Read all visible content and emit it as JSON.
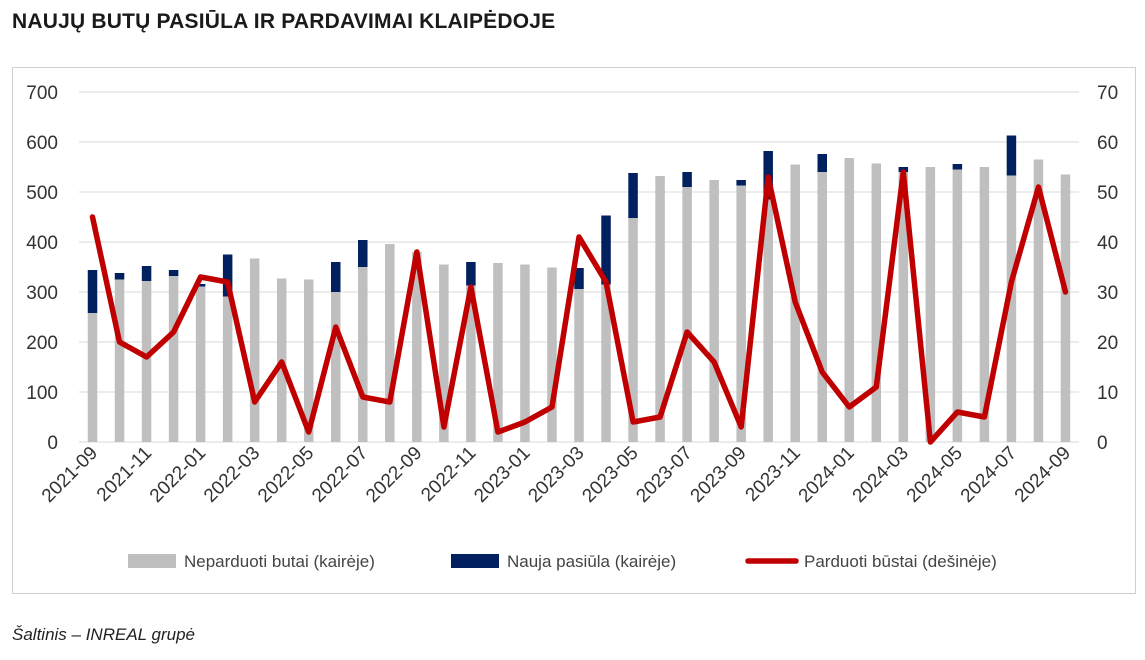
{
  "title": "NAUJŲ BUTŲ PASIŪLA IR PARDAVIMAI KLAIPĖDOJE",
  "source": "Šaltinis – INREAL grupė",
  "chart_data": {
    "type": "bar+line",
    "categories": [
      "2021-09",
      "2021-10",
      "2021-11",
      "2021-12",
      "2022-01",
      "2022-02",
      "2022-03",
      "2022-04",
      "2022-05",
      "2022-06",
      "2022-07",
      "2022-08",
      "2022-09",
      "2022-10",
      "2022-11",
      "2022-12",
      "2023-01",
      "2023-02",
      "2023-03",
      "2023-04",
      "2023-05",
      "2023-06",
      "2023-07",
      "2023-08",
      "2023-09",
      "2023-10",
      "2023-11",
      "2023-12",
      "2024-01",
      "2024-02",
      "2024-03",
      "2024-04",
      "2024-05",
      "2024-06",
      "2024-07",
      "2024-08",
      "2024-09"
    ],
    "tick_labels": [
      "2021-09",
      "2021-11",
      "2022-01",
      "2022-03",
      "2022-05",
      "2022-07",
      "2022-09",
      "2022-11",
      "2023-01",
      "2023-03",
      "2023-05",
      "2023-07",
      "2023-09",
      "2023-11",
      "2024-01",
      "2024-03",
      "2024-05",
      "2024-07",
      "2024-09"
    ],
    "series": [
      {
        "name": "Neparduoti butai (kairėje)",
        "kind": "bar",
        "axis": "left",
        "color": "#bfbfbf",
        "values": [
          258,
          325,
          322,
          332,
          311,
          291,
          367,
          327,
          325,
          300,
          350,
          396,
          380,
          355,
          313,
          358,
          355,
          349,
          306,
          315,
          448,
          532,
          510,
          524,
          513,
          485,
          555,
          540,
          568,
          557,
          540,
          550,
          545,
          550,
          533,
          565,
          535
        ]
      },
      {
        "name": "Nauja pasiūla (kairėje)",
        "kind": "bar_stacked",
        "axis": "left",
        "color": "#002060",
        "values": [
          86,
          13,
          30,
          12,
          5,
          84,
          0,
          0,
          0,
          60,
          54,
          0,
          0,
          0,
          47,
          0,
          0,
          0,
          42,
          138,
          90,
          0,
          30,
          0,
          11,
          97,
          0,
          36,
          0,
          0,
          10,
          0,
          11,
          0,
          80,
          0,
          0
        ]
      },
      {
        "name": "Parduoti būstai (dešinėje)",
        "kind": "line",
        "axis": "right",
        "color": "#c00000",
        "values": [
          45,
          20,
          17,
          22,
          33,
          32,
          8,
          16,
          2,
          23,
          9,
          8,
          38,
          3,
          31,
          2,
          4,
          7,
          41,
          32,
          4,
          5,
          22,
          16,
          3,
          53,
          28,
          14,
          7,
          11,
          54,
          0,
          6,
          5,
          32,
          51,
          30
        ]
      }
    ],
    "left_axis": {
      "min": 0,
      "max": 700,
      "step": 100
    },
    "right_axis": {
      "min": 0,
      "max": 70,
      "step": 10
    },
    "grid": true,
    "legend_position": "bottom"
  }
}
